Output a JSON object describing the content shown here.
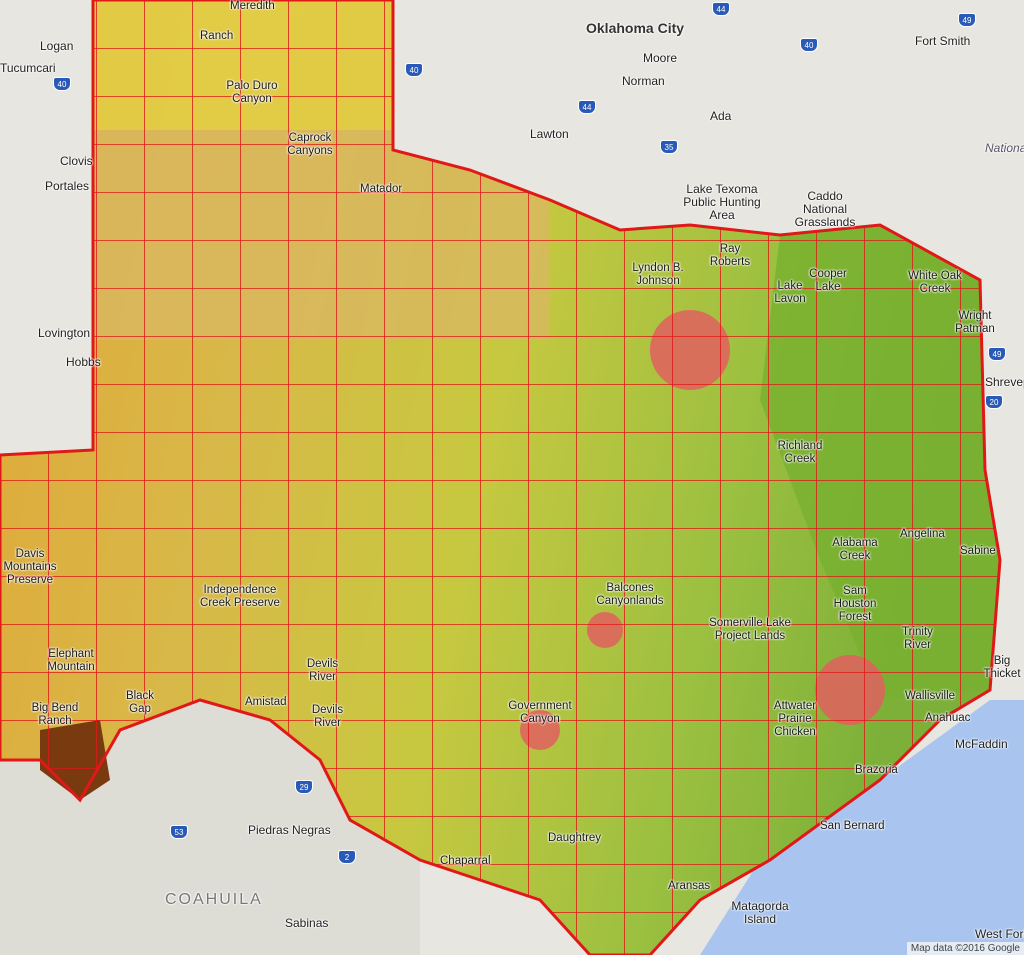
{
  "map": {
    "colors": {
      "land": "#e8e6e0",
      "water": "#a9c5ef",
      "border": "#e01818",
      "panhandle": "#d8c040",
      "west": "#d9a030",
      "east": "#a8c838",
      "forest": "#6aa830",
      "metro": "#e06060"
    },
    "cities": [
      "Oklahoma City",
      "Moore",
      "Norman",
      "Lawton",
      "Ada",
      "Fort Smith",
      "Logan",
      "Tucumcari",
      "Clovis",
      "Portales",
      "Lovington",
      "Hobbs",
      "Shreveport",
      "McFaddin",
      "Piedras Negras",
      "Sabinas"
    ],
    "region_label": "COAHUILA",
    "other_labels": [
      "National",
      "Lake Texoma Public Hunting Area",
      "Caddo National Grasslands",
      "Matagorda Island",
      "West Fork"
    ],
    "parks": [
      "Meredith",
      "Ranch",
      "Palo Duro Canyon",
      "Caprock Canyons",
      "Matador",
      "Lyndon B. Johnson",
      "Ray Roberts",
      "Cooper Lake",
      "White Oak Creek",
      "Wright Patman",
      "Lake Lavon",
      "Davis Mountains Preserve",
      "Independence Creek Preserve",
      "Elephant Mountain",
      "Big Bend Ranch",
      "Black Gap",
      "Devils River",
      "Amistad",
      "Devils River",
      "Government Canyon",
      "Balcones Canyonlands",
      "Somerville Lake Project Lands",
      "Richland Creek",
      "Alabama Creek",
      "Angelina",
      "Sam Houston Forest",
      "Attwater Prairie Chicken",
      "Trinity River",
      "Wallisville",
      "Anahuac",
      "Brazoria",
      "San Bernard",
      "Aransas",
      "Chaparral",
      "Daughtrey",
      "Big Thicket",
      "Sabine"
    ],
    "highways": [
      "40",
      "44",
      "40",
      "40",
      "49",
      "44",
      "35",
      "49",
      "20",
      "29",
      "53",
      "2"
    ],
    "attribution": "Map data ©2016 Google"
  }
}
